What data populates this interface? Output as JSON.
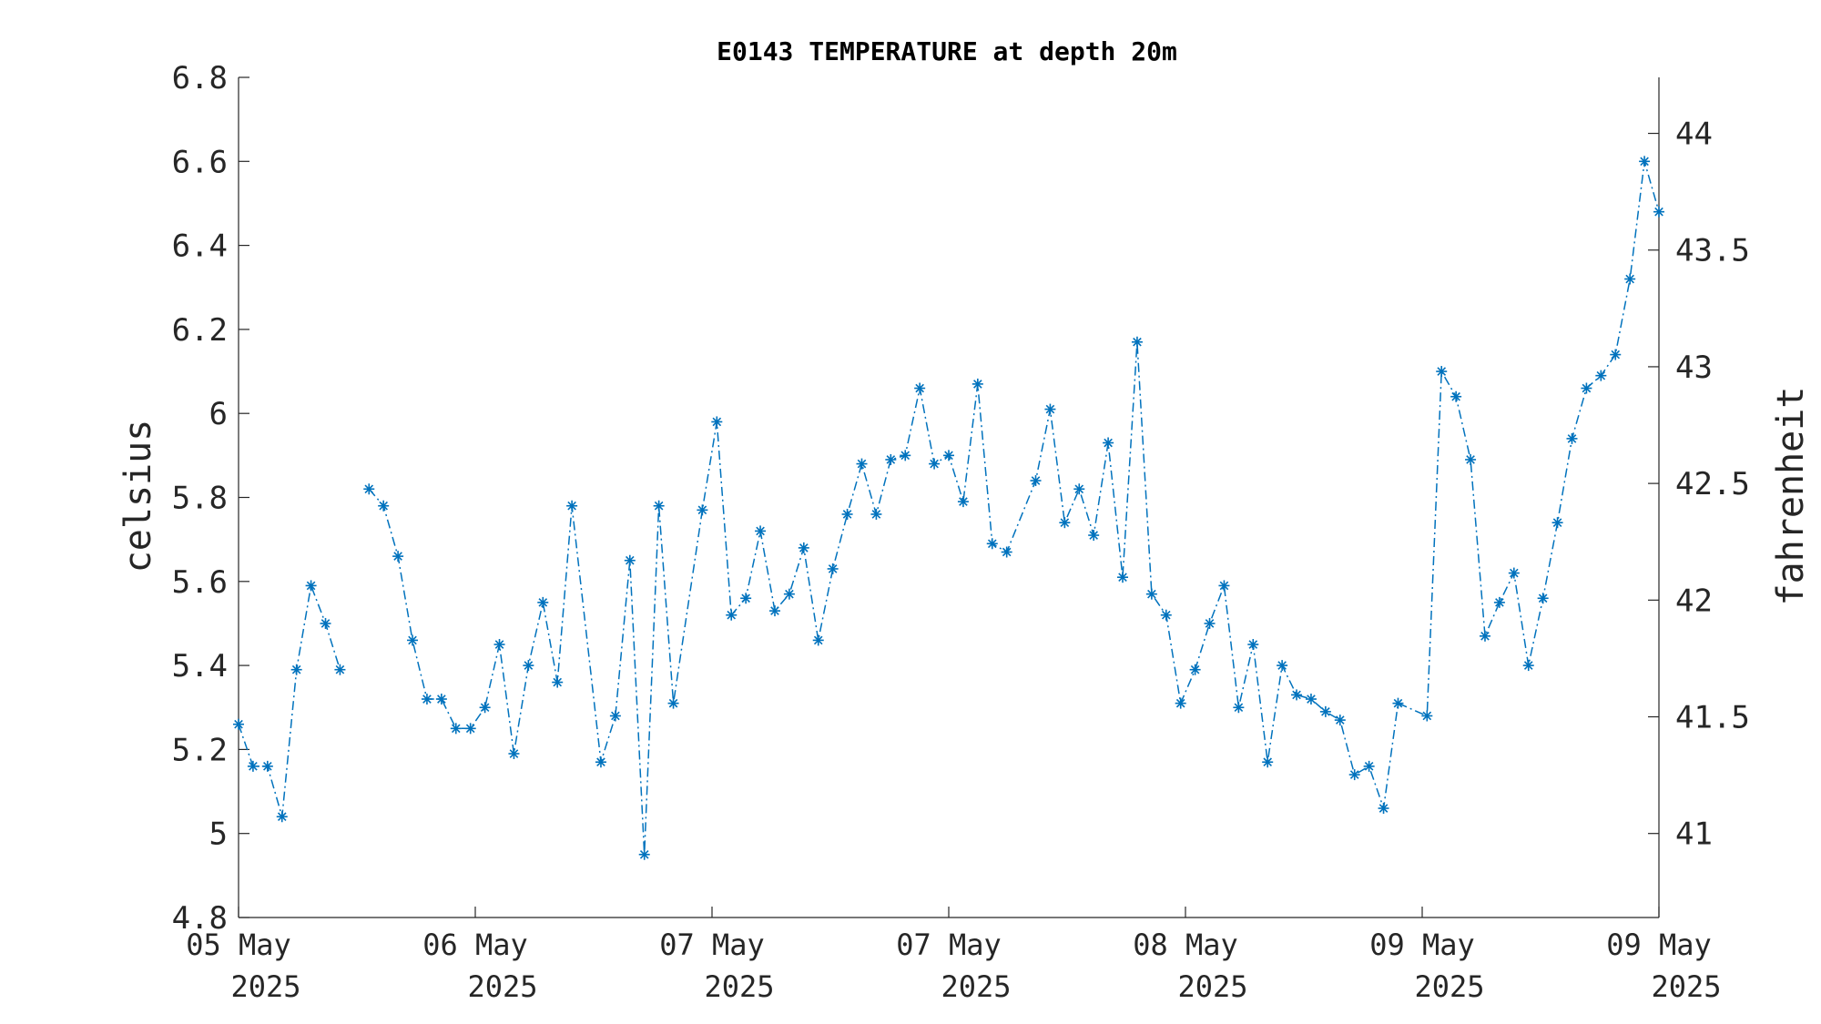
{
  "chart_data": {
    "type": "line",
    "title": "E0143 TEMPERATURE at depth 20m",
    "ylabel": "celsius",
    "y2label": "fahrenheit",
    "ylim": [
      4.8,
      6.8
    ],
    "yticks": [
      "4.8",
      "5",
      "5.2",
      "5.4",
      "5.6",
      "5.8",
      "6",
      "6.2",
      "6.4",
      "6.6",
      "6.8"
    ],
    "y2ticks": [
      "41",
      "41.5",
      "42",
      "42.5",
      "43",
      "43.5",
      "44"
    ],
    "xticks": [
      {
        "day": "05 May",
        "year": "2025"
      },
      {
        "day": "06 May",
        "year": "2025"
      },
      {
        "day": "07 May",
        "year": "2025"
      },
      {
        "day": "07 May",
        "year": "2025"
      },
      {
        "day": "08 May",
        "year": "2025"
      },
      {
        "day": "09 May",
        "year": "2025"
      },
      {
        "day": "09 May",
        "year": "2025"
      }
    ],
    "colors": {
      "series": "#0072BD",
      "axis": "#262626"
    },
    "marker": "asterisk",
    "line_style": "dash-dot",
    "grid": false,
    "series": [
      {
        "segments": [
          [
            5.26,
            5.16,
            5.16,
            5.04,
            5.39,
            5.59,
            5.5,
            5.39
          ],
          [
            5.82,
            5.78,
            5.66,
            5.46,
            5.32,
            5.32,
            5.25,
            5.25,
            5.3,
            5.45,
            5.19,
            5.4,
            5.55,
            5.36,
            5.78,
            5.17,
            5.28,
            5.65,
            4.95,
            5.78,
            5.31,
            5.77,
            5.98,
            5.52,
            5.56,
            5.72,
            5.53,
            5.57,
            5.68,
            5.46,
            5.63,
            5.76,
            5.88,
            5.76,
            5.89,
            5.9,
            6.06,
            5.88,
            5.9,
            5.79,
            6.07,
            5.69,
            5.67,
            5.84,
            6.01,
            5.74,
            5.82,
            5.71,
            5.93,
            5.61,
            6.17,
            5.57,
            5.52,
            5.31,
            5.39,
            5.5,
            5.59,
            5.3,
            5.45,
            5.17,
            5.4,
            5.33,
            5.32,
            5.29,
            5.27,
            5.14,
            5.16,
            5.06,
            5.31,
            5.28,
            6.1,
            6.04,
            5.89,
            5.47,
            5.55,
            5.62,
            5.4,
            5.56,
            5.74,
            5.94,
            6.06,
            6.09,
            6.14,
            6.32,
            6.6,
            6.48
          ]
        ],
        "segment_x_index": [
          [
            0,
            1,
            2,
            3,
            4,
            5,
            6,
            7
          ],
          [
            9,
            10,
            11,
            12,
            13,
            14,
            15,
            16,
            17,
            18,
            19,
            20,
            21,
            22,
            23,
            25,
            26,
            27,
            28,
            29,
            30,
            32,
            33,
            34,
            35,
            36,
            37,
            38,
            39,
            40,
            41,
            42,
            43,
            44,
            45,
            46,
            47,
            48,
            49,
            50,
            51,
            52,
            53,
            55,
            56,
            57,
            58,
            59,
            60,
            61,
            62,
            63,
            64,
            65,
            66,
            67,
            68,
            69,
            70,
            71,
            72,
            73,
            74,
            75,
            76,
            77,
            78,
            79,
            80,
            82,
            83,
            84,
            85,
            86,
            87,
            88,
            89,
            90,
            91,
            92,
            93,
            94,
            95,
            96,
            97,
            98
          ]
        ]
      }
    ]
  }
}
